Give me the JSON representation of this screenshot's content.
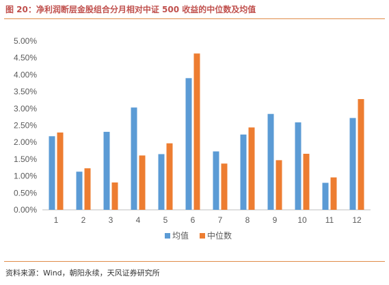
{
  "header": {
    "title": "图 20：净利润断层金股组合分月相对中证 500 收益的中位数及均值"
  },
  "footer": {
    "source": "资料来源：Wind，朝阳永续，天风证券研究所"
  },
  "chart_data": {
    "type": "bar",
    "title": "",
    "xlabel": "",
    "ylabel": "",
    "categories": [
      "1",
      "2",
      "3",
      "4",
      "5",
      "6",
      "7",
      "8",
      "9",
      "10",
      "11",
      "12"
    ],
    "series": [
      {
        "name": "均值",
        "color": "#5b9bd5",
        "values": [
          2.18,
          1.13,
          2.31,
          3.03,
          1.65,
          3.9,
          1.73,
          2.23,
          2.84,
          2.59,
          0.8,
          2.72
        ]
      },
      {
        "name": "中位数",
        "color": "#ed7d31",
        "values": [
          2.29,
          1.23,
          0.81,
          1.61,
          1.97,
          4.63,
          1.37,
          2.44,
          1.47,
          1.66,
          0.96,
          3.28
        ]
      }
    ],
    "ylim": [
      0,
      5
    ],
    "yticks": [
      "0.00%",
      "0.50%",
      "1.00%",
      "1.50%",
      "2.00%",
      "2.50%",
      "3.00%",
      "3.50%",
      "4.00%",
      "4.50%",
      "5.00%"
    ],
    "grid": false,
    "legend": "bottom"
  }
}
